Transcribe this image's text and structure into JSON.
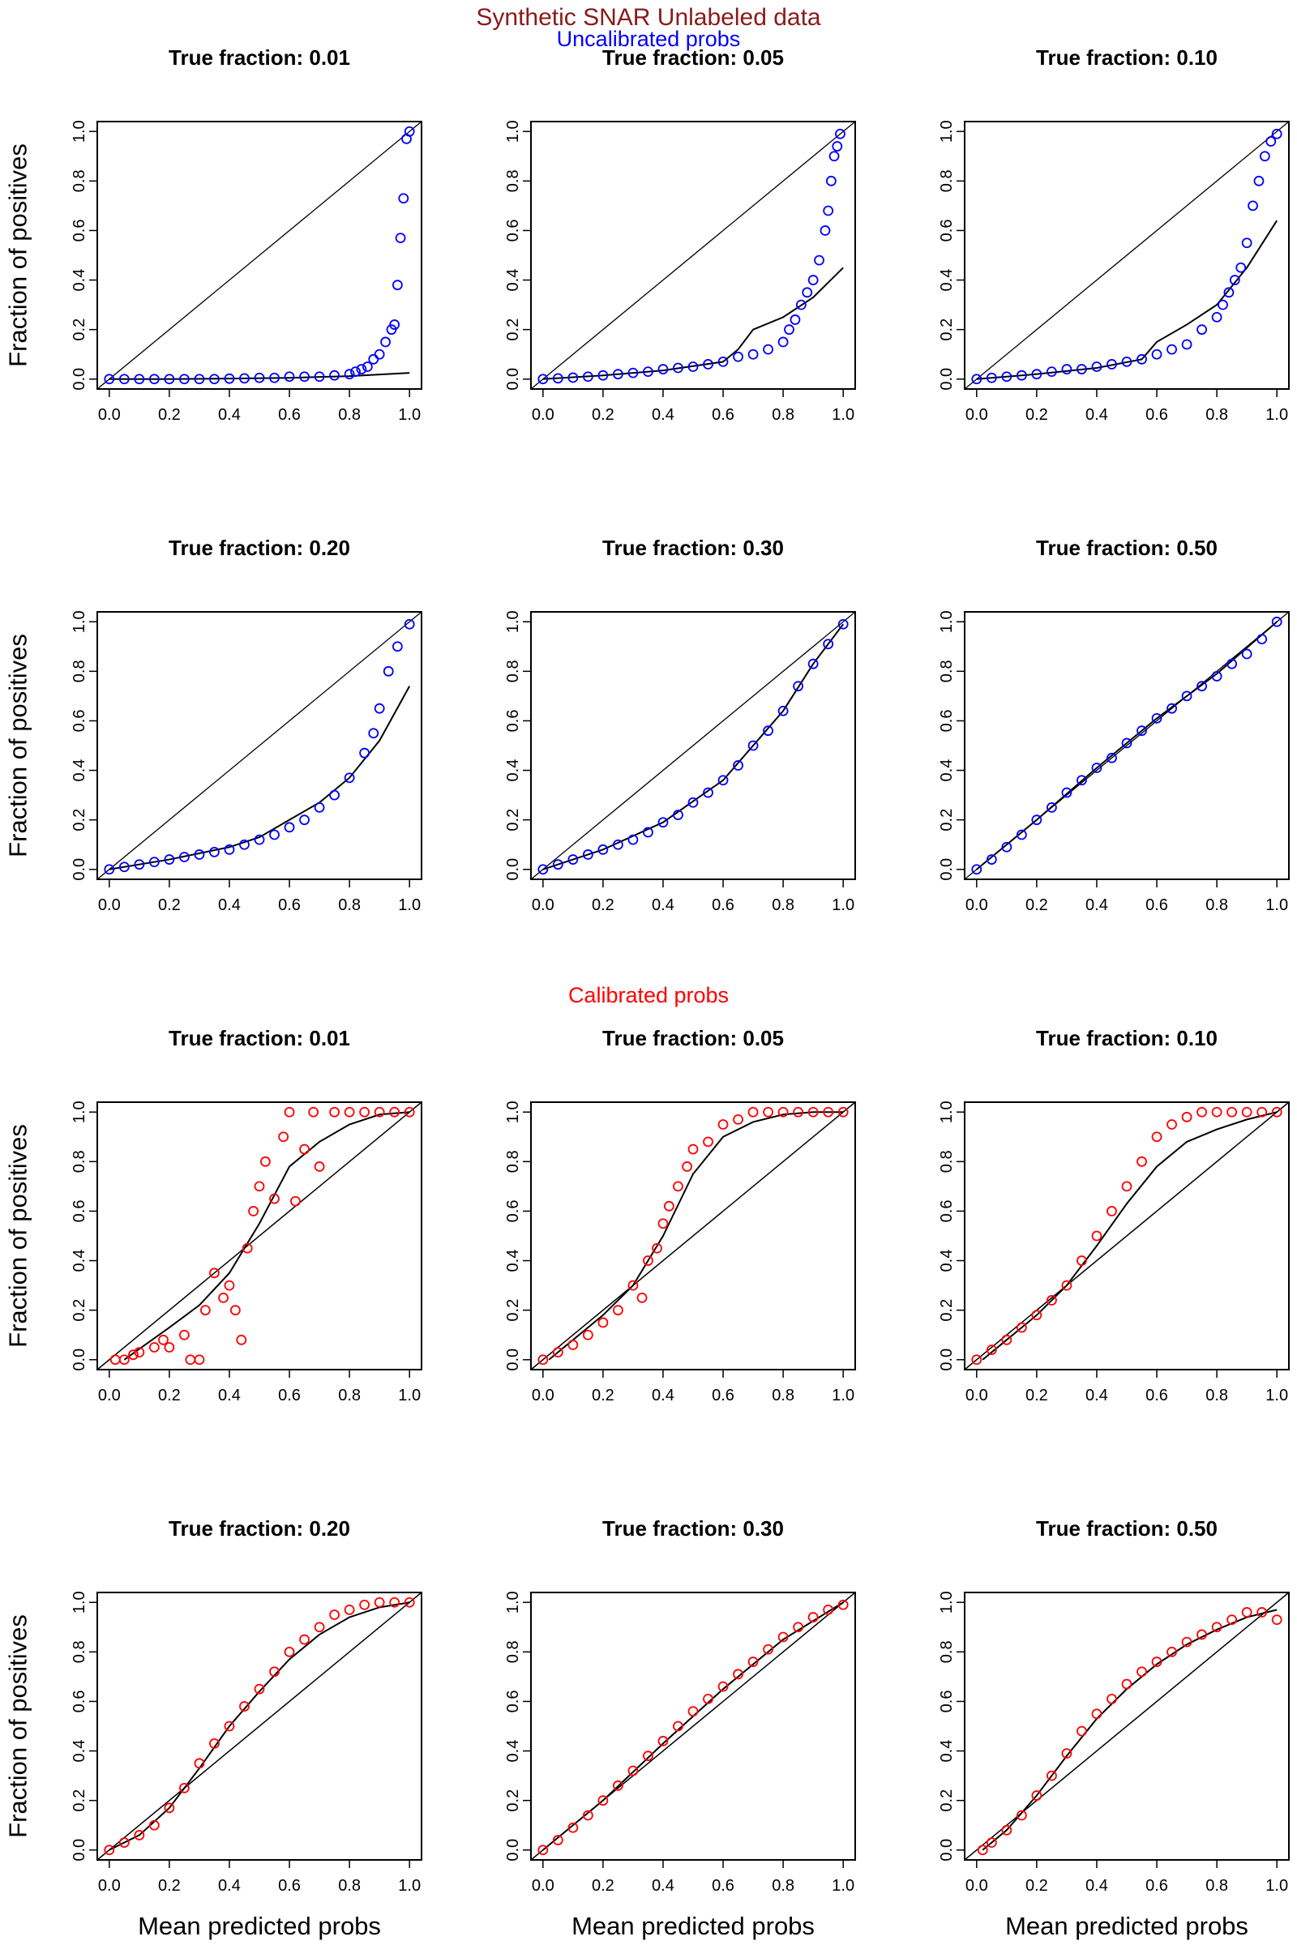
{
  "figure": {
    "title": "Synthetic SNAR Unlabeled data",
    "title_color": "#8b1a1a",
    "uncalibrated_label": "Uncalibrated probs",
    "uncalibrated_color": "#0000ff",
    "calibrated_label": "Calibrated probs",
    "calibrated_color": "#ff0000"
  },
  "chart_data": [
    {
      "type": "scatter",
      "section": "uncalibrated",
      "title": "True fraction: 0.01",
      "xlabel": "",
      "ylabel": "Fraction of positives",
      "xlim": [
        0,
        1
      ],
      "ylim": [
        0,
        1
      ],
      "x": [
        0,
        0.05,
        0.1,
        0.15,
        0.2,
        0.25,
        0.3,
        0.35,
        0.4,
        0.45,
        0.5,
        0.55,
        0.6,
        0.65,
        0.7,
        0.75,
        0.8,
        0.82,
        0.84,
        0.86,
        0.88,
        0.9,
        0.92,
        0.94,
        0.95,
        0.96,
        0.97,
        0.98,
        0.99,
        1.0
      ],
      "y": [
        0,
        0,
        0,
        0,
        0,
        0,
        0,
        0,
        0.002,
        0.003,
        0.005,
        0.005,
        0.01,
        0.01,
        0.01,
        0.015,
        0.02,
        0.03,
        0.04,
        0.05,
        0.08,
        0.1,
        0.15,
        0.2,
        0.22,
        0.38,
        0.57,
        0.73,
        0.97,
        1.0
      ],
      "fit_x": [
        0,
        0.2,
        0.4,
        0.6,
        0.8,
        1.0
      ],
      "fit_y": [
        0,
        0,
        0.002,
        0.005,
        0.012,
        0.025
      ]
    },
    {
      "type": "scatter",
      "section": "uncalibrated",
      "title": "True fraction: 0.05",
      "xlabel": "",
      "ylabel": "",
      "xlim": [
        0,
        1
      ],
      "ylim": [
        0,
        1
      ],
      "x": [
        0,
        0.05,
        0.1,
        0.15,
        0.2,
        0.25,
        0.3,
        0.35,
        0.4,
        0.45,
        0.5,
        0.55,
        0.6,
        0.65,
        0.7,
        0.75,
        0.8,
        0.82,
        0.84,
        0.86,
        0.88,
        0.9,
        0.92,
        0.94,
        0.95,
        0.96,
        0.97,
        0.98,
        0.99
      ],
      "y": [
        0,
        0.003,
        0.006,
        0.01,
        0.015,
        0.02,
        0.025,
        0.03,
        0.04,
        0.045,
        0.05,
        0.06,
        0.07,
        0.09,
        0.1,
        0.12,
        0.15,
        0.2,
        0.24,
        0.3,
        0.35,
        0.4,
        0.48,
        0.6,
        0.68,
        0.8,
        0.9,
        0.94,
        0.99
      ],
      "fit_x": [
        0,
        0.2,
        0.4,
        0.6,
        0.65,
        0.7,
        0.8,
        0.9,
        1.0
      ],
      "fit_y": [
        0,
        0.015,
        0.035,
        0.07,
        0.12,
        0.2,
        0.25,
        0.33,
        0.45
      ]
    },
    {
      "type": "scatter",
      "section": "uncalibrated",
      "title": "True fraction: 0.10",
      "xlabel": "",
      "ylabel": "",
      "xlim": [
        0,
        1
      ],
      "ylim": [
        0,
        1
      ],
      "x": [
        0,
        0.05,
        0.1,
        0.15,
        0.2,
        0.25,
        0.3,
        0.35,
        0.4,
        0.45,
        0.5,
        0.55,
        0.6,
        0.65,
        0.7,
        0.75,
        0.8,
        0.82,
        0.84,
        0.86,
        0.88,
        0.9,
        0.92,
        0.94,
        0.96,
        0.98,
        1.0
      ],
      "y": [
        0,
        0.005,
        0.01,
        0.015,
        0.02,
        0.03,
        0.04,
        0.04,
        0.05,
        0.06,
        0.07,
        0.08,
        0.1,
        0.12,
        0.14,
        0.2,
        0.25,
        0.3,
        0.35,
        0.4,
        0.45,
        0.55,
        0.7,
        0.8,
        0.9,
        0.96,
        0.99
      ],
      "fit_x": [
        0,
        0.2,
        0.4,
        0.55,
        0.6,
        0.7,
        0.8,
        0.9,
        1.0
      ],
      "fit_y": [
        0,
        0.02,
        0.045,
        0.08,
        0.15,
        0.22,
        0.3,
        0.45,
        0.64
      ]
    },
    {
      "type": "scatter",
      "section": "uncalibrated",
      "title": "True fraction: 0.20",
      "xlabel": "",
      "ylabel": "Fraction of positives",
      "xlim": [
        0,
        1
      ],
      "ylim": [
        0,
        1
      ],
      "x": [
        0,
        0.05,
        0.1,
        0.15,
        0.2,
        0.25,
        0.3,
        0.35,
        0.4,
        0.45,
        0.5,
        0.55,
        0.6,
        0.65,
        0.7,
        0.75,
        0.8,
        0.85,
        0.88,
        0.9,
        0.93,
        0.96,
        1.0
      ],
      "y": [
        0,
        0.01,
        0.02,
        0.03,
        0.04,
        0.05,
        0.06,
        0.07,
        0.08,
        0.1,
        0.12,
        0.14,
        0.17,
        0.2,
        0.25,
        0.3,
        0.37,
        0.47,
        0.55,
        0.65,
        0.8,
        0.9,
        0.99
      ],
      "fit_x": [
        0,
        0.2,
        0.4,
        0.5,
        0.6,
        0.7,
        0.8,
        0.9,
        1.0
      ],
      "fit_y": [
        0,
        0.04,
        0.09,
        0.13,
        0.2,
        0.27,
        0.37,
        0.52,
        0.74
      ]
    },
    {
      "type": "scatter",
      "section": "uncalibrated",
      "title": "True fraction: 0.30",
      "xlabel": "",
      "ylabel": "",
      "xlim": [
        0,
        1
      ],
      "ylim": [
        0,
        1
      ],
      "x": [
        0,
        0.05,
        0.1,
        0.15,
        0.2,
        0.25,
        0.3,
        0.35,
        0.4,
        0.45,
        0.5,
        0.55,
        0.6,
        0.65,
        0.7,
        0.75,
        0.8,
        0.85,
        0.9,
        0.95,
        1.0
      ],
      "y": [
        0,
        0.02,
        0.04,
        0.06,
        0.08,
        0.1,
        0.12,
        0.15,
        0.19,
        0.22,
        0.27,
        0.31,
        0.36,
        0.42,
        0.5,
        0.56,
        0.64,
        0.74,
        0.83,
        0.91,
        0.99
      ],
      "fit_x": [
        0,
        0.2,
        0.4,
        0.6,
        0.8,
        0.9,
        1.0
      ],
      "fit_y": [
        0,
        0.08,
        0.19,
        0.36,
        0.64,
        0.83,
        0.99
      ]
    },
    {
      "type": "scatter",
      "section": "uncalibrated",
      "title": "True fraction: 0.50",
      "xlabel": "",
      "ylabel": "",
      "xlim": [
        0,
        1
      ],
      "ylim": [
        0,
        1
      ],
      "x": [
        0,
        0.05,
        0.1,
        0.15,
        0.2,
        0.25,
        0.3,
        0.35,
        0.4,
        0.45,
        0.5,
        0.55,
        0.6,
        0.65,
        0.7,
        0.75,
        0.8,
        0.85,
        0.9,
        0.95,
        1.0
      ],
      "y": [
        0,
        0.04,
        0.09,
        0.14,
        0.2,
        0.25,
        0.31,
        0.36,
        0.41,
        0.45,
        0.51,
        0.56,
        0.61,
        0.65,
        0.7,
        0.74,
        0.78,
        0.83,
        0.87,
        0.93,
        1.0
      ],
      "fit_x": [
        0,
        0.2,
        0.4,
        0.6,
        0.8,
        1.0
      ],
      "fit_y": [
        0,
        0.2,
        0.41,
        0.61,
        0.79,
        1.0
      ]
    },
    {
      "type": "scatter",
      "section": "calibrated",
      "title": "True fraction: 0.01",
      "xlabel": "",
      "ylabel": "Fraction of positives",
      "xlim": [
        0,
        1
      ],
      "ylim": [
        0,
        1
      ],
      "x": [
        0.02,
        0.05,
        0.08,
        0.1,
        0.15,
        0.18,
        0.2,
        0.25,
        0.27,
        0.3,
        0.32,
        0.35,
        0.38,
        0.4,
        0.42,
        0.44,
        0.46,
        0.48,
        0.5,
        0.52,
        0.55,
        0.58,
        0.6,
        0.62,
        0.65,
        0.68,
        0.7,
        0.75,
        0.8,
        0.85,
        0.9,
        0.95,
        1.0
      ],
      "y": [
        0,
        0,
        0.02,
        0.03,
        0.05,
        0.08,
        0.05,
        0.1,
        0.0,
        0.0,
        0.2,
        0.35,
        0.25,
        0.3,
        0.2,
        0.08,
        0.45,
        0.6,
        0.7,
        0.8,
        0.65,
        0.9,
        1.0,
        0.64,
        0.85,
        1.0,
        0.78,
        1.0,
        1.0,
        1.0,
        1.0,
        1.0,
        1.0
      ],
      "fit_x": [
        0.05,
        0.2,
        0.3,
        0.4,
        0.5,
        0.6,
        0.7,
        0.8,
        0.9,
        1.0
      ],
      "fit_y": [
        0,
        0.13,
        0.22,
        0.35,
        0.55,
        0.78,
        0.88,
        0.95,
        0.99,
        1.0
      ]
    },
    {
      "type": "scatter",
      "section": "calibrated",
      "title": "True fraction: 0.05",
      "xlabel": "",
      "ylabel": "",
      "xlim": [
        0,
        1
      ],
      "ylim": [
        0,
        1
      ],
      "x": [
        0,
        0.05,
        0.1,
        0.15,
        0.2,
        0.25,
        0.3,
        0.33,
        0.35,
        0.38,
        0.4,
        0.42,
        0.45,
        0.48,
        0.5,
        0.55,
        0.6,
        0.65,
        0.7,
        0.75,
        0.8,
        0.85,
        0.9,
        0.95,
        1.0
      ],
      "y": [
        0,
        0.03,
        0.06,
        0.1,
        0.15,
        0.2,
        0.3,
        0.25,
        0.4,
        0.45,
        0.55,
        0.62,
        0.7,
        0.78,
        0.85,
        0.88,
        0.95,
        0.97,
        1.0,
        1.0,
        1.0,
        1.0,
        1.0,
        1.0,
        1.0
      ],
      "fit_x": [
        0.02,
        0.1,
        0.2,
        0.3,
        0.4,
        0.5,
        0.6,
        0.7,
        0.8,
        0.9,
        1.0
      ],
      "fit_y": [
        0,
        0.08,
        0.18,
        0.3,
        0.5,
        0.75,
        0.9,
        0.96,
        0.99,
        1.0,
        1.0
      ]
    },
    {
      "type": "scatter",
      "section": "calibrated",
      "title": "True fraction: 0.10",
      "xlabel": "",
      "ylabel": "",
      "xlim": [
        0,
        1
      ],
      "ylim": [
        0,
        1
      ],
      "x": [
        0,
        0.05,
        0.1,
        0.15,
        0.2,
        0.25,
        0.3,
        0.35,
        0.4,
        0.45,
        0.5,
        0.55,
        0.6,
        0.65,
        0.7,
        0.75,
        0.8,
        0.85,
        0.9,
        0.95,
        1.0
      ],
      "y": [
        0,
        0.04,
        0.08,
        0.13,
        0.18,
        0.24,
        0.3,
        0.4,
        0.5,
        0.6,
        0.7,
        0.8,
        0.9,
        0.95,
        0.98,
        1.0,
        1.0,
        1.0,
        1.0,
        1.0,
        1.0
      ],
      "fit_x": [
        0.02,
        0.1,
        0.2,
        0.3,
        0.4,
        0.5,
        0.6,
        0.7,
        0.8,
        0.9,
        1.0
      ],
      "fit_y": [
        0,
        0.08,
        0.18,
        0.3,
        0.46,
        0.63,
        0.78,
        0.88,
        0.93,
        0.97,
        1.0
      ]
    },
    {
      "type": "scatter",
      "section": "calibrated",
      "title": "True fraction: 0.20",
      "xlabel": "Mean predicted probs",
      "ylabel": "Fraction of positives",
      "xlim": [
        0,
        1
      ],
      "ylim": [
        0,
        1
      ],
      "x": [
        0,
        0.05,
        0.1,
        0.15,
        0.2,
        0.25,
        0.3,
        0.35,
        0.4,
        0.45,
        0.5,
        0.55,
        0.6,
        0.65,
        0.7,
        0.75,
        0.8,
        0.85,
        0.9,
        0.95,
        1.0
      ],
      "y": [
        0,
        0.03,
        0.06,
        0.1,
        0.17,
        0.25,
        0.35,
        0.43,
        0.5,
        0.58,
        0.65,
        0.72,
        0.8,
        0.85,
        0.9,
        0.95,
        0.97,
        0.99,
        1.0,
        1.0,
        1.0
      ],
      "fit_x": [
        0,
        0.1,
        0.2,
        0.3,
        0.4,
        0.5,
        0.6,
        0.7,
        0.8,
        0.9,
        1.0
      ],
      "fit_y": [
        0,
        0.06,
        0.17,
        0.33,
        0.5,
        0.64,
        0.77,
        0.87,
        0.94,
        0.98,
        1.0
      ]
    },
    {
      "type": "scatter",
      "section": "calibrated",
      "title": "True fraction: 0.30",
      "xlabel": "Mean predicted probs",
      "ylabel": "",
      "xlim": [
        0,
        1
      ],
      "ylim": [
        0,
        1
      ],
      "x": [
        0,
        0.05,
        0.1,
        0.15,
        0.2,
        0.25,
        0.3,
        0.35,
        0.4,
        0.45,
        0.5,
        0.55,
        0.6,
        0.65,
        0.7,
        0.75,
        0.8,
        0.85,
        0.9,
        0.95,
        1.0
      ],
      "y": [
        0,
        0.04,
        0.09,
        0.14,
        0.2,
        0.26,
        0.32,
        0.38,
        0.44,
        0.5,
        0.56,
        0.61,
        0.66,
        0.71,
        0.76,
        0.81,
        0.86,
        0.9,
        0.94,
        0.97,
        0.99
      ],
      "fit_x": [
        0,
        0.2,
        0.4,
        0.6,
        0.8,
        1.0
      ],
      "fit_y": [
        0,
        0.2,
        0.43,
        0.65,
        0.85,
        1.0
      ]
    },
    {
      "type": "scatter",
      "section": "calibrated",
      "title": "True fraction: 0.50",
      "xlabel": "Mean predicted probs",
      "ylabel": "",
      "xlim": [
        0,
        1
      ],
      "ylim": [
        0,
        1
      ],
      "x": [
        0.02,
        0.05,
        0.1,
        0.15,
        0.2,
        0.25,
        0.3,
        0.35,
        0.4,
        0.45,
        0.5,
        0.55,
        0.6,
        0.65,
        0.7,
        0.75,
        0.8,
        0.85,
        0.9,
        0.95,
        1.0
      ],
      "y": [
        0,
        0.03,
        0.08,
        0.14,
        0.22,
        0.3,
        0.39,
        0.48,
        0.55,
        0.61,
        0.67,
        0.72,
        0.76,
        0.8,
        0.84,
        0.87,
        0.9,
        0.93,
        0.96,
        0.96,
        0.93
      ],
      "fit_x": [
        0.02,
        0.1,
        0.2,
        0.3,
        0.4,
        0.5,
        0.6,
        0.7,
        0.8,
        0.9,
        1.0
      ],
      "fit_y": [
        0,
        0.08,
        0.22,
        0.38,
        0.53,
        0.65,
        0.75,
        0.83,
        0.89,
        0.94,
        0.97
      ]
    }
  ]
}
